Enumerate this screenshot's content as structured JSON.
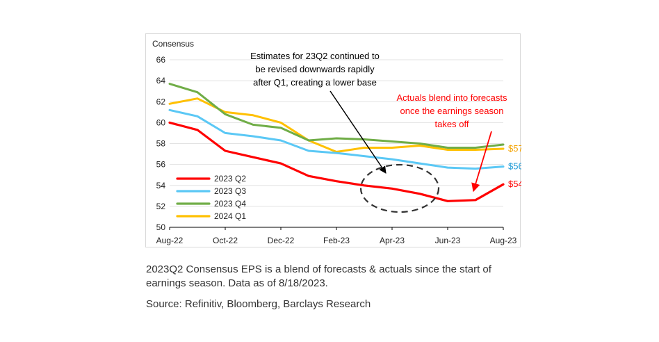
{
  "chart_data": {
    "type": "line",
    "ylabel": "Consensus",
    "ylim": [
      50,
      66
    ],
    "yticks": [
      50,
      52,
      54,
      56,
      58,
      60,
      62,
      64,
      66
    ],
    "x_tick_labels": [
      "Aug-22",
      "Oct-22",
      "Dec-22",
      "Feb-23",
      "Apr-23",
      "Jun-23",
      "Aug-23"
    ],
    "x": [
      "Aug-22",
      "Sep-22",
      "Oct-22",
      "Nov-22",
      "Dec-22",
      "Jan-23",
      "Feb-23",
      "Mar-23",
      "Apr-23",
      "May-23",
      "Jun-23",
      "Jul-23",
      "Aug-23"
    ],
    "grid": "horizontal",
    "legend_position": "bottom-left",
    "series": [
      {
        "name": "2023 Q2",
        "color": "#ff0000",
        "values": [
          60.0,
          59.3,
          57.3,
          56.7,
          56.1,
          54.9,
          54.4,
          54.0,
          53.7,
          53.2,
          52.5,
          52.6,
          54.1
        ]
      },
      {
        "name": "2023 Q3",
        "color": "#5bc8f5",
        "values": [
          61.2,
          60.6,
          59.0,
          58.7,
          58.3,
          57.3,
          57.1,
          56.8,
          56.5,
          56.1,
          55.7,
          55.6,
          55.8
        ]
      },
      {
        "name": "2023 Q4",
        "color": "#70ad47",
        "values": [
          63.7,
          62.9,
          60.8,
          59.8,
          59.5,
          58.3,
          58.5,
          58.4,
          58.2,
          58.0,
          57.6,
          57.6,
          57.9
        ]
      },
      {
        "name": "2024 Q1",
        "color": "#ffc000",
        "values": [
          61.8,
          62.3,
          61.0,
          60.7,
          60.0,
          58.3,
          57.2,
          57.6,
          57.6,
          57.8,
          57.4,
          57.4,
          57.5
        ]
      }
    ],
    "end_labels": [
      {
        "text": "$57",
        "color": "#f4a300",
        "value": 57.5
      },
      {
        "text": "$56",
        "color": "#1f9bd6",
        "value": 55.8
      },
      {
        "text": "$54",
        "color": "#ff0000",
        "value": 54.1
      }
    ],
    "annotations": [
      {
        "lines": [
          "Estimates for 23Q2 continued to",
          "be revised downwards rapidly",
          "after Q1, creating a lower base"
        ],
        "color": "#000000"
      },
      {
        "lines": [
          "Actuals blend into forecasts",
          "once the earnings season",
          "takes off"
        ],
        "color": "#ff0000"
      }
    ]
  },
  "caption": {
    "note": "2023Q2 Consensus EPS is a blend of forecasts & actuals since the start of  earnings season. Data as of 8/18/2023.",
    "source": "Source: Refinitiv, Bloomberg, Barclays Research"
  }
}
